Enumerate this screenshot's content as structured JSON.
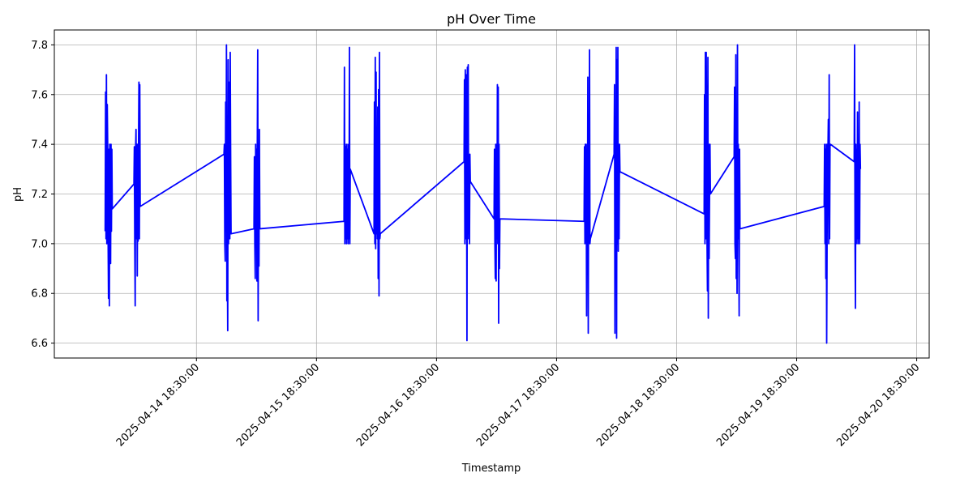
{
  "chart_data": {
    "type": "line",
    "title": "pH Over Time",
    "xlabel": "Timestamp",
    "ylabel": "pH",
    "grid": true,
    "line_color": "#0000ff",
    "xlim": [
      "2025-04-13 14:05:00",
      "2025-04-20 21:00:00"
    ],
    "ylim": [
      6.54,
      7.86
    ],
    "y_ticks": [
      6.6,
      6.8,
      7.0,
      7.2,
      7.4,
      7.6,
      7.8
    ],
    "y_tick_labels": [
      "6.6",
      "6.8",
      "7.0",
      "7.2",
      "7.4",
      "7.6",
      "7.8"
    ],
    "x_ticks": [
      "2025-04-14 18:30:00",
      "2025-04-15 18:30:00",
      "2025-04-16 18:30:00",
      "2025-04-17 18:30:00",
      "2025-04-18 18:30:00",
      "2025-04-19 18:30:00",
      "2025-04-20 18:30:00"
    ],
    "x_tick_labels": [
      "2025-04-14 18:30:00",
      "2025-04-15 18:30:00",
      "2025-04-16 18:30:00",
      "2025-04-17 18:30:00",
      "2025-04-18 18:30:00",
      "2025-04-19 18:30:00",
      "2025-04-20 18:30:00"
    ],
    "series": [
      {
        "x": [
          "2025-04-14 00:15:00",
          "2025-04-14 00:20:00",
          "2025-04-14 00:25:00",
          "2025-04-14 00:30:00",
          "2025-04-14 00:35:00",
          "2025-04-14 00:40:00",
          "2025-04-14 00:45:00",
          "2025-04-14 00:50:00",
          "2025-04-14 00:55:00",
          "2025-04-14 01:00:00",
          "2025-04-14 01:05:00",
          "2025-04-14 01:10:00",
          "2025-04-14 01:15:00",
          "2025-04-14 01:20:00",
          "2025-04-14 01:25:00",
          "2025-04-14 01:30:00",
          "2025-04-14 01:35:00",
          "2025-04-14 01:40:00",
          "2025-04-14 06:00:00",
          "2025-04-14 06:05:00",
          "2025-04-14 06:10:00",
          "2025-04-14 06:15:00",
          "2025-04-14 06:20:00",
          "2025-04-14 06:25:00",
          "2025-04-14 06:30:00",
          "2025-04-14 06:35:00",
          "2025-04-14 06:40:00",
          "2025-04-14 06:45:00",
          "2025-04-14 06:50:00",
          "2025-04-14 06:55:00",
          "2025-04-14 07:00:00",
          "2025-04-14 07:05:00",
          "2025-04-14 07:10:00",
          "2025-04-14 07:15:00",
          "2025-04-15 00:00:00",
          "2025-04-15 00:05:00",
          "2025-04-15 00:10:00",
          "2025-04-15 00:15:00",
          "2025-04-15 00:20:00",
          "2025-04-15 00:25:00",
          "2025-04-15 00:30:00",
          "2025-04-15 00:35:00",
          "2025-04-15 00:40:00",
          "2025-04-15 00:45:00",
          "2025-04-15 00:50:00",
          "2025-04-15 00:55:00",
          "2025-04-15 01:00:00",
          "2025-04-15 01:05:00",
          "2025-04-15 01:10:00",
          "2025-04-15 01:15:00",
          "2025-04-15 01:20:00",
          "2025-04-15 01:25:00",
          "2025-04-15 06:00:00",
          "2025-04-15 06:05:00",
          "2025-04-15 06:10:00",
          "2025-04-15 06:15:00",
          "2025-04-15 06:20:00",
          "2025-04-15 06:25:00",
          "2025-04-15 06:30:00",
          "2025-04-15 06:35:00",
          "2025-04-15 06:40:00",
          "2025-04-15 06:45:00",
          "2025-04-15 06:50:00",
          "2025-04-15 06:55:00",
          "2025-04-15 07:00:00",
          "2025-04-15 07:05:00",
          "2025-04-15 07:10:00",
          "2025-04-16 00:00:00",
          "2025-04-16 00:05:00",
          "2025-04-16 00:10:00",
          "2025-04-16 00:15:00",
          "2025-04-16 00:20:00",
          "2025-04-16 00:25:00",
          "2025-04-16 00:30:00",
          "2025-04-16 00:35:00",
          "2025-04-16 00:40:00",
          "2025-04-16 00:45:00",
          "2025-04-16 00:50:00",
          "2025-04-16 00:55:00",
          "2025-04-16 01:00:00",
          "2025-04-16 01:05:00",
          "2025-04-16 01:10:00",
          "2025-04-16 01:15:00",
          "2025-04-16 06:00:00",
          "2025-04-16 06:05:00",
          "2025-04-16 06:10:00",
          "2025-04-16 06:15:00",
          "2025-04-16 06:20:00",
          "2025-04-16 06:25:00",
          "2025-04-16 06:30:00",
          "2025-04-16 06:35:00",
          "2025-04-16 06:40:00",
          "2025-04-16 06:45:00",
          "2025-04-16 06:50:00",
          "2025-04-16 06:55:00",
          "2025-04-16 07:00:00",
          "2025-04-16 07:05:00",
          "2025-04-16 07:10:00",
          "2025-04-16 07:15:00",
          "2025-04-17 00:00:00",
          "2025-04-17 00:05:00",
          "2025-04-17 00:10:00",
          "2025-04-17 00:15:00",
          "2025-04-17 00:20:00",
          "2025-04-17 00:25:00",
          "2025-04-17 00:30:00",
          "2025-04-17 00:35:00",
          "2025-04-17 00:40:00",
          "2025-04-17 00:45:00",
          "2025-04-17 00:50:00",
          "2025-04-17 00:55:00",
          "2025-04-17 01:00:00",
          "2025-04-17 01:05:00",
          "2025-04-17 01:10:00",
          "2025-04-17 01:15:00",
          "2025-04-17 06:00:00",
          "2025-04-17 06:05:00",
          "2025-04-17 06:10:00",
          "2025-04-17 06:15:00",
          "2025-04-17 06:20:00",
          "2025-04-17 06:25:00",
          "2025-04-17 06:30:00",
          "2025-04-17 06:35:00",
          "2025-04-17 06:40:00",
          "2025-04-17 06:45:00",
          "2025-04-17 06:50:00",
          "2025-04-17 06:55:00",
          "2025-04-17 07:00:00",
          "2025-04-17 07:05:00",
          "2025-04-17 07:10:00",
          "2025-04-18 00:00:00",
          "2025-04-18 00:05:00",
          "2025-04-18 00:10:00",
          "2025-04-18 00:15:00",
          "2025-04-18 00:20:00",
          "2025-04-18 00:25:00",
          "2025-04-18 00:30:00",
          "2025-04-18 00:35:00",
          "2025-04-18 00:40:00",
          "2025-04-18 00:45:00",
          "2025-04-18 00:50:00",
          "2025-04-18 00:55:00",
          "2025-04-18 01:00:00",
          "2025-04-18 01:05:00",
          "2025-04-18 01:10:00",
          "2025-04-18 01:15:00",
          "2025-04-18 06:00:00",
          "2025-04-18 06:05:00",
          "2025-04-18 06:10:00",
          "2025-04-18 06:15:00",
          "2025-04-18 06:20:00",
          "2025-04-18 06:25:00",
          "2025-04-18 06:30:00",
          "2025-04-18 06:35:00",
          "2025-04-18 06:40:00",
          "2025-04-18 06:45:00",
          "2025-04-18 06:50:00",
          "2025-04-18 06:55:00",
          "2025-04-18 07:00:00",
          "2025-04-18 07:05:00",
          "2025-04-18 07:10:00",
          "2025-04-19 00:00:00",
          "2025-04-19 00:05:00",
          "2025-04-19 00:10:00",
          "2025-04-19 00:15:00",
          "2025-04-19 00:20:00",
          "2025-04-19 00:25:00",
          "2025-04-19 00:30:00",
          "2025-04-19 00:35:00",
          "2025-04-19 00:40:00",
          "2025-04-19 00:45:00",
          "2025-04-19 00:50:00",
          "2025-04-19 00:55:00",
          "2025-04-19 01:00:00",
          "2025-04-19 01:05:00",
          "2025-04-19 01:10:00",
          "2025-04-19 01:15:00",
          "2025-04-19 06:00:00",
          "2025-04-19 06:05:00",
          "2025-04-19 06:10:00",
          "2025-04-19 06:15:00",
          "2025-04-19 06:20:00",
          "2025-04-19 06:25:00",
          "2025-04-19 06:30:00",
          "2025-04-19 06:35:00",
          "2025-04-19 06:40:00",
          "2025-04-19 06:45:00",
          "2025-04-19 06:50:00",
          "2025-04-19 06:55:00",
          "2025-04-19 07:00:00",
          "2025-04-19 07:05:00",
          "2025-04-19 07:10:00",
          "2025-04-20 00:00:00",
          "2025-04-20 00:05:00",
          "2025-04-20 00:10:00",
          "2025-04-20 00:15:00",
          "2025-04-20 00:20:00",
          "2025-04-20 00:25:00",
          "2025-04-20 00:30:00",
          "2025-04-20 00:35:00",
          "2025-04-20 00:40:00",
          "2025-04-20 00:45:00",
          "2025-04-20 00:50:00",
          "2025-04-20 00:55:00",
          "2025-04-20 01:00:00",
          "2025-04-20 01:05:00",
          "2025-04-20 01:10:00",
          "2025-04-20 01:15:00",
          "2025-04-20 06:00:00",
          "2025-04-20 06:05:00",
          "2025-04-20 06:10:00",
          "2025-04-20 06:15:00",
          "2025-04-20 06:20:00",
          "2025-04-20 06:25:00",
          "2025-04-20 06:30:00",
          "2025-04-20 06:35:00",
          "2025-04-20 06:40:00",
          "2025-04-20 06:45:00",
          "2025-04-20 06:50:00",
          "2025-04-20 06:55:00",
          "2025-04-20 07:00:00",
          "2025-04-20 07:05:00",
          "2025-04-20 07:10:00",
          "2025-04-20 07:15:00"
        ],
        "y": [
          7.05,
          7.61,
          7.02,
          7.68,
          7.0,
          7.56,
          7.4,
          7.03,
          6.78,
          7.38,
          6.75,
          7.4,
          7.1,
          6.92,
          7.4,
          7.05,
          7.38,
          7.14,
          7.24,
          7.39,
          7.0,
          6.75,
          7.38,
          7.46,
          7.02,
          7.4,
          6.87,
          7.4,
          7.01,
          7.38,
          7.65,
          7.02,
          7.64,
          7.15,
          7.36,
          7.4,
          7.0,
          6.93,
          7.57,
          7.05,
          7.8,
          6.77,
          7.01,
          6.65,
          7.74,
          7.0,
          7.28,
          7.65,
          7.02,
          7.77,
          7.38,
          7.04,
          7.06,
          7.35,
          7.0,
          6.86,
          7.4,
          7.02,
          7.38,
          6.85,
          7.4,
          7.78,
          6.69,
          7.4,
          6.91,
          7.46,
          7.06,
          7.09,
          7.71,
          7.0,
          7.4,
          7.02,
          7.39,
          7.0,
          7.4,
          7.02,
          7.38,
          7.0,
          7.4,
          7.02,
          7.79,
          7.0,
          7.3,
          7.04,
          7.57,
          7.0,
          7.75,
          6.98,
          7.69,
          7.04,
          7.4,
          7.02,
          7.55,
          6.86,
          7.62,
          6.79,
          7.77,
          7.02,
          7.04,
          7.33,
          7.66,
          7.0,
          7.7,
          7.02,
          7.68,
          7.4,
          6.61,
          7.71,
          7.04,
          7.72,
          7.02,
          7.3,
          7.0,
          7.36,
          7.25,
          7.1,
          7.38,
          7.0,
          6.86,
          7.4,
          6.85,
          7.4,
          7.02,
          7.64,
          7.0,
          7.63,
          6.68,
          7.4,
          6.9,
          7.1,
          7.09,
          7.39,
          7.0,
          7.4,
          7.02,
          7.4,
          6.71,
          7.38,
          7.0,
          7.67,
          6.64,
          7.4,
          7.02,
          7.78,
          7.0,
          7.02,
          7.36,
          7.64,
          6.64,
          7.4,
          7.02,
          7.79,
          6.62,
          7.74,
          7.0,
          7.79,
          6.97,
          7.4,
          7.02,
          7.4,
          7.29,
          7.12,
          7.6,
          7.0,
          7.77,
          7.02,
          7.77,
          7.4,
          7.0,
          6.81,
          7.75,
          6.7,
          7.4,
          6.94,
          7.2,
          7.4,
          7.2,
          7.35,
          7.63,
          7.0,
          6.94,
          7.76,
          6.86,
          7.4,
          6.8,
          7.8,
          7.02,
          7.4,
          7.0,
          6.71,
          7.38,
          7.06,
          7.15,
          7.4,
          7.0,
          7.38,
          6.86,
          7.4,
          6.6,
          7.02,
          7.4,
          7.36,
          7.5,
          7.0,
          7.68,
          7.02,
          7.4,
          7.4,
          7.33,
          7.8,
          7.02,
          6.74,
          7.4,
          7.0,
          7.38,
          7.02,
          7.53,
          7.0,
          7.4,
          7.02,
          7.57,
          7.0,
          7.4,
          7.3
        ]
      }
    ]
  }
}
